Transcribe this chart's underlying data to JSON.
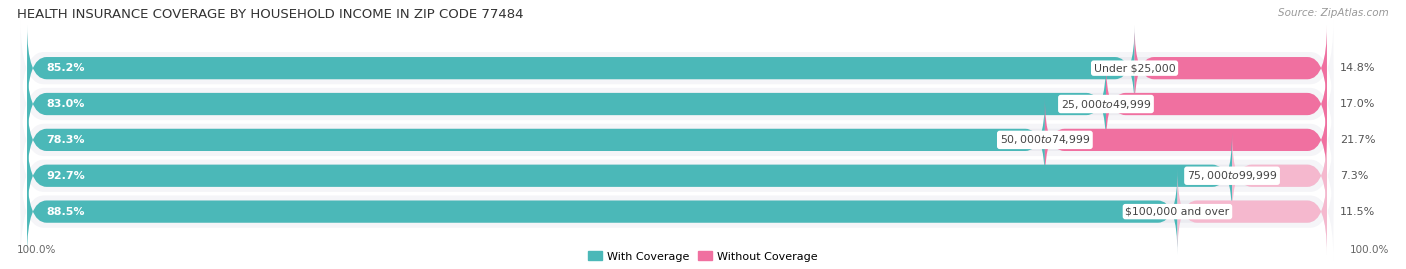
{
  "title": "HEALTH INSURANCE COVERAGE BY HOUSEHOLD INCOME IN ZIP CODE 77484",
  "source": "Source: ZipAtlas.com",
  "categories": [
    "Under $25,000",
    "$25,000 to $49,999",
    "$50,000 to $74,999",
    "$75,000 to $99,999",
    "$100,000 and over"
  ],
  "with_coverage": [
    85.2,
    83.0,
    78.3,
    92.7,
    88.5
  ],
  "without_coverage": [
    14.8,
    17.0,
    21.7,
    7.3,
    11.5
  ],
  "coverage_color": "#4bb8b8",
  "no_coverage_color_dark": "#f070a0",
  "no_coverage_color_light": "#f5b8ce",
  "no_coverage_colors": [
    "#f070a0",
    "#f070a0",
    "#f070a0",
    "#f5b8ce",
    "#f5b8ce"
  ],
  "bar_bg_color": "#ebebf0",
  "background_color": "#ffffff",
  "row_bg_color": "#f5f5f8",
  "title_fontsize": 9.5,
  "label_fontsize": 8.0,
  "cat_fontsize": 7.8,
  "tick_fontsize": 7.5,
  "legend_fontsize": 8.0,
  "bar_height": 0.62,
  "xlim": [
    0,
    100
  ],
  "bottom_label": "100.0%"
}
